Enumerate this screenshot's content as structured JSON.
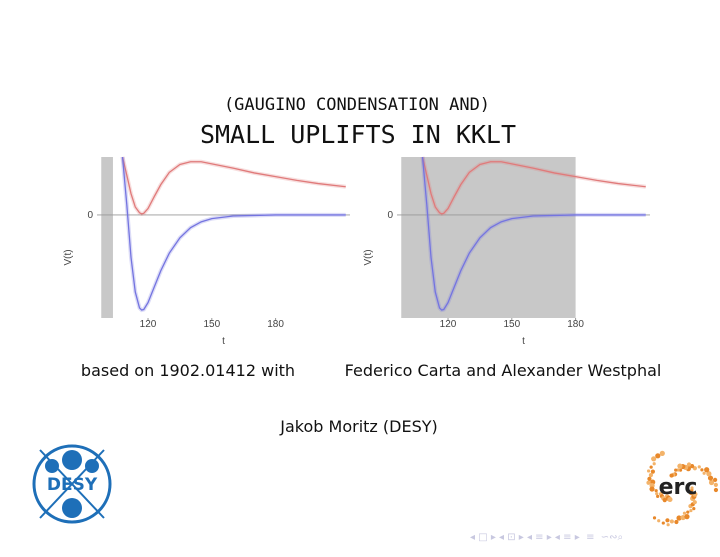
{
  "slide": {
    "subtitle": "(GAUGINO CONDENSATION AND)",
    "title": "SMALL UPLIFTS IN KKLT",
    "based_on": "based on 1902.01412 with",
    "coauthors": "Federico Carta and Alexander Westphal",
    "author": "Jakob Moritz (DESY)",
    "logo_left": "DESY",
    "logo_right": "erc"
  },
  "chart_data": [
    {
      "type": "line",
      "x_label": "t",
      "y_label": "V(t)",
      "xlim": [
        96,
        215
      ],
      "ylim": [
        -1.94,
        1.09
      ],
      "xticks": [
        120,
        150,
        180
      ],
      "yticks": [
        0
      ],
      "shaded_region": [
        98,
        103.5
      ],
      "shade_color": "#c8c8c8",
      "x": [
        108,
        110,
        112,
        114,
        116,
        117,
        118,
        120,
        123,
        126,
        130,
        135,
        140,
        145,
        150,
        160,
        170,
        180,
        190,
        200,
        213
      ],
      "series": [
        {
          "color": "#e07a7a",
          "values": [
            1.09,
            0.75,
            0.4,
            0.15,
            0.04,
            0.02,
            0.03,
            0.12,
            0.35,
            0.57,
            0.8,
            0.95,
            1.0,
            1.0,
            0.96,
            0.88,
            0.79,
            0.72,
            0.65,
            0.59,
            0.53
          ]
        },
        {
          "color": "#7474e0",
          "values": [
            1.09,
            0.2,
            -0.8,
            -1.45,
            -1.75,
            -1.79,
            -1.78,
            -1.65,
            -1.35,
            -1.05,
            -0.72,
            -0.43,
            -0.24,
            -0.13,
            -0.07,
            -0.02,
            -0.01,
            0,
            0,
            0,
            0
          ]
        }
      ]
    },
    {
      "type": "line",
      "x_label": "t",
      "y_label": "V(t)",
      "xlim": [
        96,
        215
      ],
      "ylim": [
        -1.94,
        1.09
      ],
      "xticks": [
        120,
        150,
        180
      ],
      "yticks": [
        0
      ],
      "shaded_region": [
        98,
        180
      ],
      "shade_color": "#c8c8c8",
      "x": [
        108,
        110,
        112,
        114,
        116,
        117,
        118,
        120,
        123,
        126,
        130,
        135,
        140,
        145,
        150,
        160,
        170,
        180,
        190,
        200,
        213
      ],
      "series": [
        {
          "color": "#e07a7a",
          "values": [
            1.09,
            0.75,
            0.4,
            0.15,
            0.04,
            0.02,
            0.03,
            0.12,
            0.35,
            0.57,
            0.8,
            0.95,
            1.0,
            1.0,
            0.96,
            0.88,
            0.79,
            0.72,
            0.65,
            0.59,
            0.53
          ]
        },
        {
          "color": "#7474e0",
          "values": [
            1.09,
            0.2,
            -0.8,
            -1.45,
            -1.75,
            -1.79,
            -1.78,
            -1.65,
            -1.35,
            -1.05,
            -0.72,
            -0.43,
            -0.24,
            -0.13,
            -0.07,
            -0.02,
            -0.01,
            0,
            0,
            0,
            0
          ]
        }
      ]
    }
  ]
}
